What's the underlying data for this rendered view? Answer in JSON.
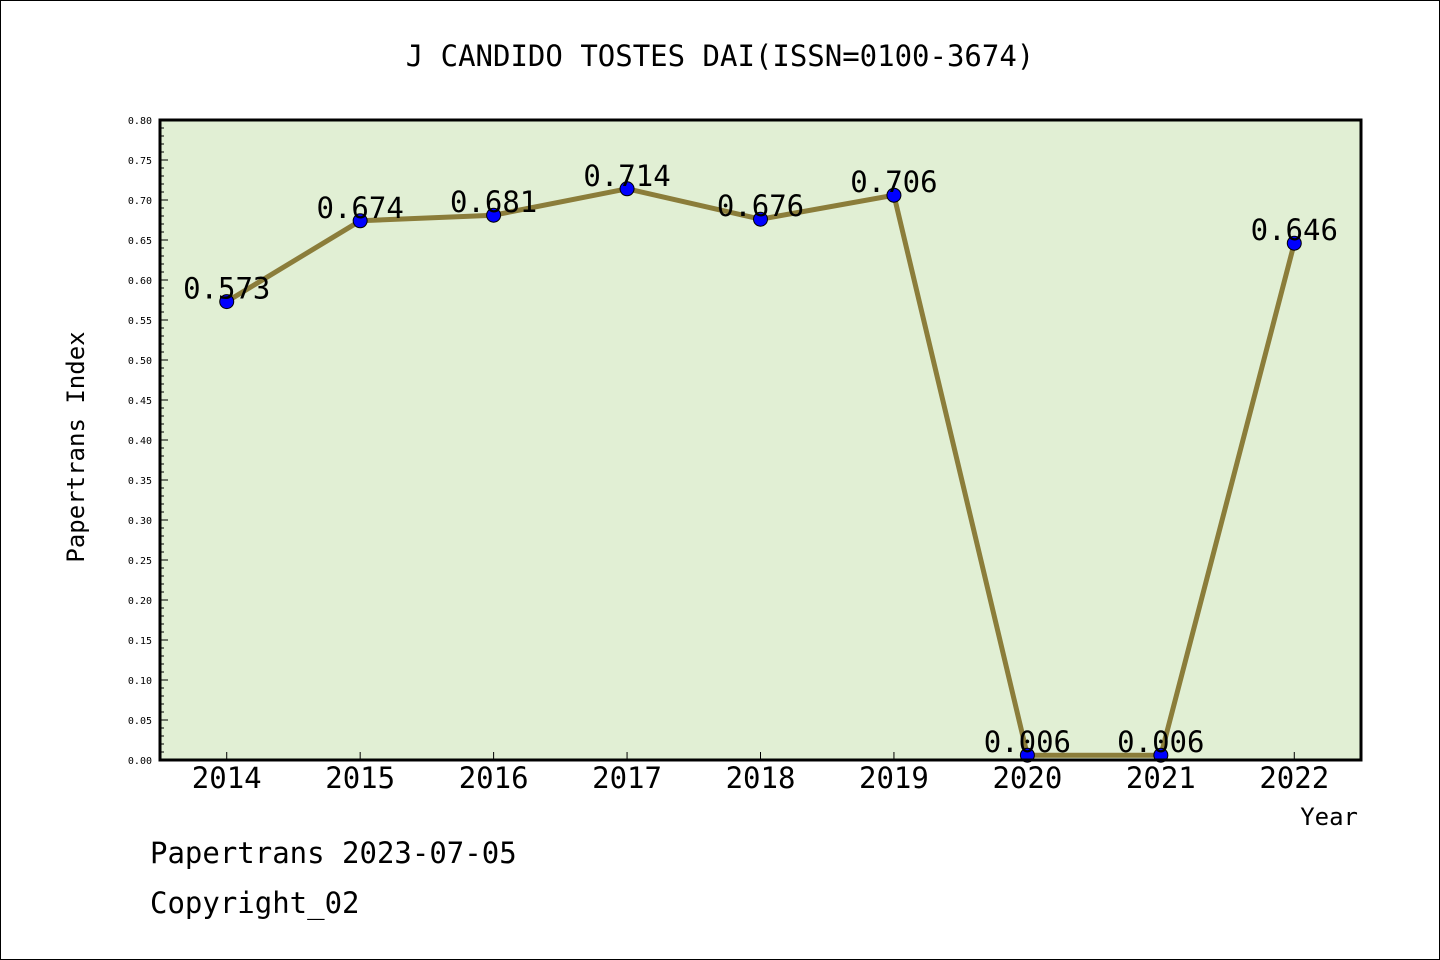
{
  "chart_data": {
    "type": "line",
    "title": "J CANDIDO TOSTES DAI(ISSN=0100-3674)",
    "xlabel": "Year",
    "ylabel": "Papertrans Index",
    "categories": [
      "2014",
      "2015",
      "2016",
      "2017",
      "2018",
      "2019",
      "2020",
      "2021",
      "2022"
    ],
    "series": [
      {
        "values": [
          0.573,
          0.674,
          0.681,
          0.714,
          0.676,
          0.706,
          0.006,
          0.006,
          0.646
        ],
        "labels": [
          "0.573",
          "0.674",
          "0.681",
          "0.714",
          "0.676",
          "0.706",
          "0.006",
          "0.006",
          "0.646"
        ]
      }
    ],
    "ylim": [
      0,
      0.8
    ],
    "yticks": [
      "0.00",
      "0.05",
      "0.10",
      "0.15",
      "0.20",
      "0.25",
      "0.30",
      "0.35",
      "0.40",
      "0.45",
      "0.50",
      "0.55",
      "0.60",
      "0.65",
      "0.70",
      "0.75",
      "0.80"
    ],
    "grid": false,
    "colors": {
      "plot_background": "#e1efd4",
      "line": "#8b7d3a",
      "marker": "#0000ff"
    }
  },
  "footer": {
    "line1": "Papertrans 2023-07-05",
    "line2": "Copyright_02"
  }
}
